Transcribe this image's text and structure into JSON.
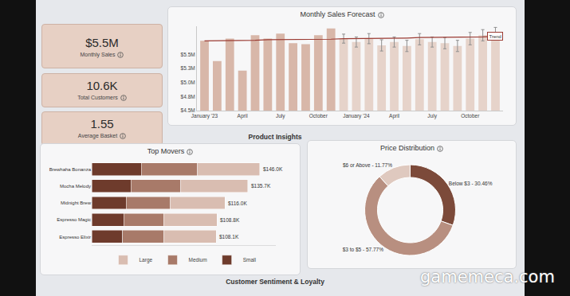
{
  "kpis": [
    {
      "value": "$5.5M",
      "label": "Monthly Sales"
    },
    {
      "value": "10.6K",
      "label": "Total Customers"
    },
    {
      "value": "1.55",
      "label": "Average Basket"
    }
  ],
  "sections": [
    "Product Insights",
    "Customer Sentiment & Loyalty"
  ],
  "watermark": "gamemeca.com",
  "chart_data": [
    {
      "type": "bar",
      "title": "Monthly Sales Forecast",
      "categories": [
        "January '23",
        null,
        null,
        "April",
        null,
        null,
        "July",
        null,
        null,
        "October",
        null,
        null,
        "January '24",
        null,
        null,
        "April",
        null,
        null,
        "July",
        null,
        null,
        "October",
        null,
        null
      ],
      "series": [
        {
          "type": "bar",
          "values": [
            5.74,
            5.38,
            5.78,
            5.21,
            5.84,
            5.78,
            5.87,
            5.7,
            5.68,
            5.84,
            5.96,
            5.78,
            5.72,
            5.78,
            5.66,
            5.72,
            5.65,
            5.77,
            5.72,
            5.7,
            5.65,
            5.78,
            5.84,
            5.87
          ],
          "colors": [
            "#d8b7a9",
            "#d8b7a9",
            "#d8b7a9",
            "#d8b7a9",
            "#d8b7a9",
            "#d8b7a9",
            "#d8b7a9",
            "#d8b7a9",
            "#d8b7a9",
            "#d8b7a9",
            "#d8b7a9",
            "#e6d3ca",
            "#e6d3ca",
            "#e6d3ca",
            "#e6d3ca",
            "#e6d3ca",
            "#e6d3ca",
            "#e6d3ca",
            "#e6d3ca",
            "#e6d3ca",
            "#e6d3ca",
            "#e6d3ca",
            "#e6d3ca",
            "#e6d3ca"
          ],
          "error": [
            null,
            null,
            null,
            null,
            null,
            null,
            null,
            null,
            null,
            null,
            null,
            0.08,
            0.09,
            0.09,
            0.1,
            0.09,
            0.1,
            0.1,
            0.09,
            0.1,
            0.1,
            0.11,
            0.1,
            0.11
          ]
        },
        {
          "type": "line",
          "name": "Trend",
          "color": "#9b3b33",
          "values": [
            5.74,
            5.74,
            5.75,
            5.75,
            5.75,
            5.76,
            5.76,
            5.76,
            5.77,
            5.77,
            5.77,
            5.78,
            5.78,
            5.78,
            5.79,
            5.79,
            5.79,
            5.8,
            5.8,
            5.8,
            5.81,
            5.81,
            5.81,
            5.82
          ]
        }
      ],
      "ylim": [
        4.5,
        6.0
      ],
      "yticks": [
        {
          "value": 4.5,
          "label": "$4.5M"
        },
        {
          "value": 4.75,
          "label": "$4.8M"
        },
        {
          "value": 5.0,
          "label": "$5.0M"
        },
        {
          "value": 5.25,
          "label": "$5.3M"
        },
        {
          "value": 5.5,
          "label": "$5.5M"
        }
      ],
      "grid": false
    },
    {
      "type": "bar",
      "title": "Top Movers",
      "orientation": "horizontal",
      "stacked": true,
      "categories": [
        "Brewhaha Bonanza",
        "Mocha Melody",
        "Midnight Brew",
        "Espresso Magic",
        "Espresso Elixir"
      ],
      "series": [
        {
          "name": "Small",
          "color": "#6e3b2c",
          "values": [
            43.0,
            34.0,
            30.0,
            28.0,
            27.0
          ]
        },
        {
          "name": "Medium",
          "color": "#a87a69",
          "values": [
            49.0,
            43.5,
            38.5,
            34.5,
            35.7
          ]
        },
        {
          "name": "Large",
          "color": "#d9bdb1",
          "values": [
            54.0,
            58.2,
            47.5,
            46.3,
            45.4
          ]
        }
      ],
      "totals": [
        146.0,
        135.7,
        116.0,
        108.8,
        108.1
      ],
      "total_labels": [
        "$146.0K",
        "$135.7K",
        "$116.0K",
        "$108.8K",
        "$108.1K"
      ],
      "xlim": [
        0,
        160
      ],
      "tick_labels": "y",
      "grid": false,
      "legend": "bottom"
    },
    {
      "type": "pie",
      "title": "Price Distribution",
      "categories": [
        "Below $3",
        "$3 to $5",
        "$6 or Above"
      ],
      "values": [
        30.46,
        57.77,
        11.77
      ],
      "value_labels": [
        "Below $3 - 30.46%",
        "$3 to $5 - 57.77%",
        "$6 or Above - 11.77%"
      ],
      "colors": [
        "#7c4a3a",
        "#b88f80",
        "#dfc9bf"
      ],
      "data_labels": true
    }
  ]
}
